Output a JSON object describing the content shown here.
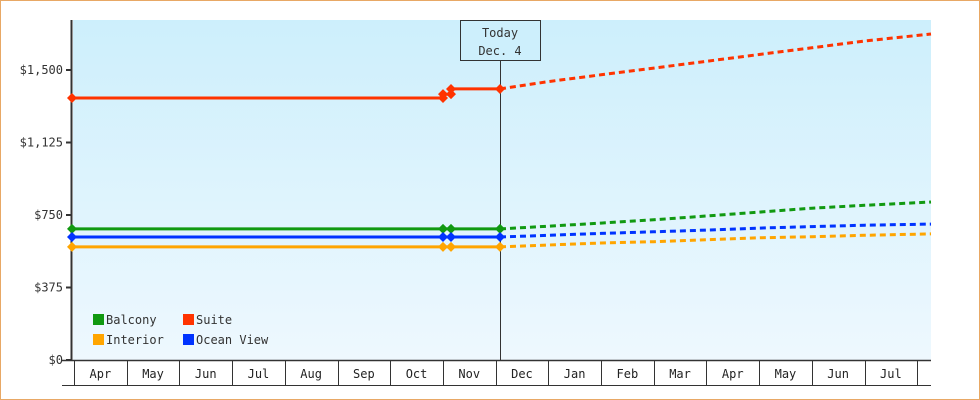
{
  "chart_data": {
    "type": "line",
    "title": "",
    "xlabel": "",
    "ylabel": "",
    "ylim": [
      0,
      1750
    ],
    "y_ticks": [
      {
        "value": 0,
        "label": "$0"
      },
      {
        "value": 375,
        "label": "$375"
      },
      {
        "value": 750,
        "label": "$750"
      },
      {
        "value": 1125,
        "label": "$1,125"
      },
      {
        "value": 1500,
        "label": "$1,500"
      }
    ],
    "x_categories": [
      "Apr",
      "May",
      "Jun",
      "Jul",
      "Aug",
      "Sep",
      "Oct",
      "Nov",
      "Dec",
      "Jan",
      "Feb",
      "Mar",
      "Apr",
      "May",
      "Jun",
      "Jul",
      ""
    ],
    "today_marker": {
      "line1": "Today",
      "line2": "Dec. 4",
      "month_index": 8.1
    },
    "grid": false,
    "legend_position": "bottom-left-inside",
    "series": [
      {
        "name": "Balcony",
        "color": "#119911",
        "historical": [
          [
            0,
            678
          ],
          [
            7.0,
            678
          ],
          [
            7.2,
            678
          ],
          [
            8.1,
            678
          ]
        ],
        "historical_markers": [
          0,
          7.0,
          7.2,
          8.1
        ],
        "projected": [
          [
            8.1,
            678
          ],
          [
            9.0,
            692
          ],
          [
            10.0,
            708
          ],
          [
            11.0,
            725
          ],
          [
            12.0,
            745
          ],
          [
            13.0,
            765
          ],
          [
            14.0,
            785
          ],
          [
            15.0,
            800
          ],
          [
            16.3,
            817
          ]
        ]
      },
      {
        "name": "Suite",
        "color": "#ff3300",
        "historical": [
          [
            0,
            1355
          ],
          [
            7.0,
            1355
          ],
          [
            7.0,
            1375
          ],
          [
            7.2,
            1375
          ],
          [
            7.2,
            1402
          ],
          [
            8.1,
            1402
          ]
        ],
        "historical_markers": [
          0,
          7.0,
          7.2,
          8.1
        ],
        "projected": [
          [
            8.1,
            1402
          ],
          [
            9.0,
            1440
          ],
          [
            10.0,
            1475
          ],
          [
            11.0,
            1510
          ],
          [
            12.0,
            1545
          ],
          [
            13.0,
            1580
          ],
          [
            14.0,
            1615
          ],
          [
            15.0,
            1650
          ],
          [
            16.3,
            1686
          ]
        ]
      },
      {
        "name": "Interior",
        "color": "#ffa500",
        "historical": [
          [
            0,
            585
          ],
          [
            7.0,
            585
          ],
          [
            7.2,
            585
          ],
          [
            8.1,
            585
          ]
        ],
        "historical_markers": [
          0,
          7.0,
          7.2,
          8.1
        ],
        "projected": [
          [
            8.1,
            585
          ],
          [
            9.0,
            595
          ],
          [
            10.0,
            605
          ],
          [
            11.0,
            612
          ],
          [
            12.0,
            622
          ],
          [
            13.0,
            632
          ],
          [
            14.0,
            638
          ],
          [
            15.0,
            645
          ],
          [
            16.3,
            652
          ]
        ]
      },
      {
        "name": "Ocean View",
        "color": "#0033ff",
        "historical": [
          [
            0,
            636
          ],
          [
            7.0,
            636
          ],
          [
            7.2,
            636
          ],
          [
            8.1,
            636
          ]
        ],
        "historical_markers": [
          0,
          7.0,
          7.2,
          8.1
        ],
        "projected": [
          [
            8.1,
            636
          ],
          [
            9.0,
            645
          ],
          [
            10.0,
            655
          ],
          [
            11.0,
            663
          ],
          [
            12.0,
            672
          ],
          [
            13.0,
            682
          ],
          [
            14.0,
            690
          ],
          [
            15.0,
            697
          ],
          [
            16.3,
            703
          ]
        ]
      }
    ]
  },
  "legend": [
    {
      "label": "Balcony",
      "color": "#119911"
    },
    {
      "label": "Suite",
      "color": "#ff3300"
    },
    {
      "label": "Interior",
      "color": "#ffa500"
    },
    {
      "label": "Ocean View",
      "color": "#0033ff"
    }
  ],
  "colors": {
    "frame_border": "#e8a865",
    "plot_top": "#cdeffc",
    "plot_bottom": "#eef8fe",
    "axis": "#333333"
  }
}
